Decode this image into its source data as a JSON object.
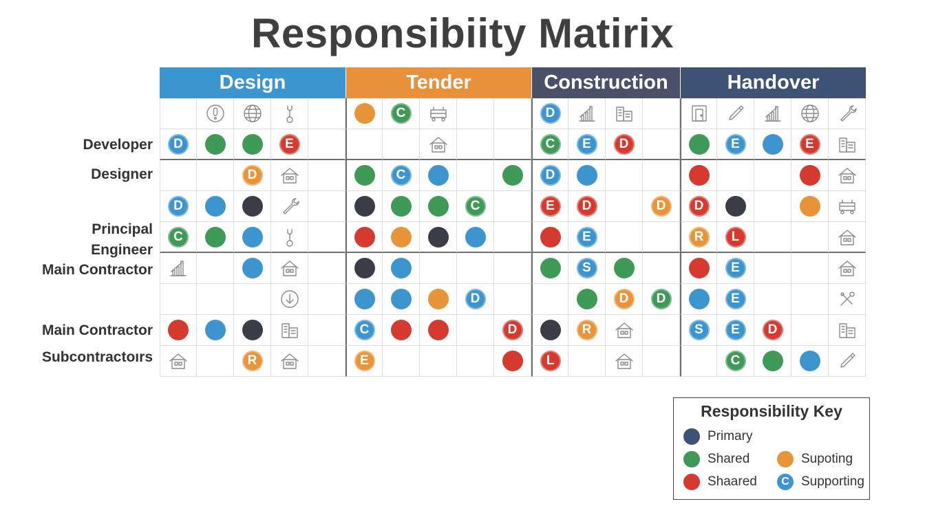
{
  "title": "Responsibiity Matirix",
  "colors": {
    "blue": "#3d95cf",
    "green": "#3f9a58",
    "red": "#d63a2f",
    "orange": "#e89438",
    "dark": "#3a3d47",
    "navy": "#3e5275"
  },
  "phases": [
    {
      "label": "Design",
      "color": "#3b96cf"
    },
    {
      "label": "Tender",
      "color": "#e9903a"
    },
    {
      "label": "Construction",
      "color": "#4a5068"
    },
    {
      "label": "Handover",
      "color": "#3e5275"
    }
  ],
  "roles": [
    {
      "label": "Developer"
    },
    {
      "label": "Designer"
    },
    {
      "label": "Principal Engineer",
      "lines": [
        "Principal",
        "Engineer"
      ]
    },
    {
      "label": "Main Contractor"
    },
    {
      "label": "Main Contractor"
    },
    {
      "label": "Subcontractoırs"
    }
  ],
  "matrix": [
    [
      "",
      "icon:alert",
      "icon:globe",
      "icon:tool",
      "",
      "orange",
      "green:C",
      "icon:cart",
      "",
      "",
      "blue:D",
      "icon:chart",
      "icon:building",
      "",
      "icon:door",
      "icon:pen",
      "icon:chart",
      "icon:globe",
      "icon:wrench"
    ],
    [
      "blue:D",
      "green",
      "green",
      "red:E",
      "",
      "",
      "",
      "icon:house",
      "",
      "",
      "green:C",
      "blue:E",
      "red:D",
      "",
      "green",
      "blue:E",
      "blue",
      "red:E",
      "icon:building"
    ],
    [
      "",
      "",
      "orange:D",
      "icon:house",
      "",
      "green",
      "blue:C",
      "blue",
      "",
      "green",
      "blue:D",
      "blue",
      "",
      "",
      "red",
      "",
      "",
      "red",
      "icon:house"
    ],
    [
      "blue:D",
      "blue",
      "dark",
      "icon:wrench",
      "",
      "dark",
      "green",
      "green",
      "green:C",
      "",
      "red:E",
      "red:D",
      "",
      "orange:D",
      "red:D",
      "dark",
      "",
      "orange",
      "icon:cart"
    ],
    [
      "green:C",
      "green",
      "blue",
      "icon:tool",
      "",
      "red",
      "orange",
      "dark",
      "blue",
      "",
      "red",
      "blue:E",
      "",
      "",
      "orange:R",
      "red:L",
      "",
      "",
      "icon:house"
    ],
    [
      "icon:chart",
      "",
      "blue",
      "icon:house",
      "",
      "dark",
      "blue",
      "",
      "",
      "",
      "green",
      "blue:S",
      "green",
      "",
      "red",
      "blue:E",
      "",
      "",
      "icon:house"
    ],
    [
      "",
      "",
      "",
      "icon:down",
      "",
      "blue",
      "blue",
      "orange",
      "blue:D",
      "",
      "",
      "green",
      "orange:D",
      "green:D",
      "blue",
      "blue:E",
      "",
      "",
      "icon:tools"
    ],
    [
      "red",
      "blue",
      "dark",
      "icon:building",
      "",
      "blue:C",
      "red",
      "red",
      "",
      "red:D",
      "dark",
      "orange:R",
      "icon:house",
      "",
      "blue:S",
      "blue:E",
      "red:D",
      "",
      "icon:building"
    ],
    [
      "icon:house",
      "",
      "orange:R",
      "icon:house",
      "",
      "orange:E",
      "",
      "",
      "",
      "red",
      "red:L",
      "",
      "icon:house",
      "",
      "",
      "green:C",
      "green",
      "blue",
      "icon:pen"
    ]
  ],
  "legend": {
    "title": "Responsibility Key",
    "items": [
      {
        "label": "Primary",
        "color": "#3e5275",
        "letter": ""
      },
      {
        "label": "Shared",
        "color": "#3f9a58",
        "letter": ""
      },
      {
        "label": "Supoting",
        "color": "#e89438",
        "letter": ""
      },
      {
        "label": "Shaared",
        "color": "#d63a2f",
        "letter": ""
      },
      {
        "label": "Supporting",
        "color": "#3d95cf",
        "letter": "C"
      }
    ]
  }
}
